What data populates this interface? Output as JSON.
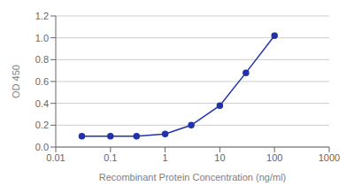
{
  "chart_data": {
    "type": "line",
    "x": [
      0.03,
      0.1,
      0.3,
      1.0,
      3.0,
      10.0,
      30.0,
      100.0
    ],
    "values": [
      0.1,
      0.1,
      0.1,
      0.12,
      0.2,
      0.38,
      0.68,
      1.02
    ],
    "xlabel": "Recombinant Protein Concentration (ng/ml)",
    "ylabel": "OD 450",
    "log": "x",
    "xlim": [
      0.01,
      1000
    ],
    "xticks": [
      0.01,
      0.1,
      1,
      10,
      100,
      1000
    ],
    "ylim": [
      0.0,
      1.2
    ],
    "yticks": [
      {
        "value": 0.0,
        "label": "0.0"
      },
      0.2,
      0.4,
      0.6,
      0.8,
      {
        "value": 1.0,
        "label": "1.0"
      },
      1.2
    ],
    "color": "#2233aa",
    "marker": "circle",
    "grid": true
  }
}
